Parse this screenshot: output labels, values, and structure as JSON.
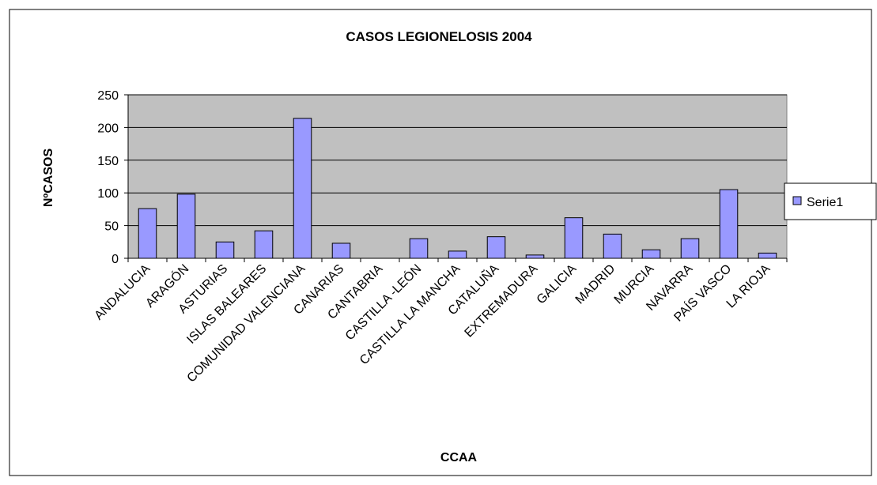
{
  "chart_data": {
    "type": "bar",
    "title": "CASOS LEGIONELOSIS 2004",
    "x_label": "CCAA",
    "y_label": "NºCASOS",
    "categories": [
      "ANDALUCIA",
      "ARAGÓN",
      "ASTURIAS",
      "ISLAS BALEARES",
      "COMUNIDAD VALENCIANA",
      "CANARIAS",
      "CANTABRIA",
      "CASTILLA -LEÓN",
      "CASTILLA LA MANCHA",
      "CATALUÑA",
      "EXTREMADURA",
      "GALICIA",
      "MADRID",
      "MURCIA",
      "NAVARRA",
      "PAÍS VASCO",
      "LA RIOJA"
    ],
    "series": [
      {
        "name": "Serie1",
        "color": "#9999ff",
        "values": [
          76,
          98,
          25,
          42,
          214,
          23,
          0,
          30,
          11,
          33,
          5,
          62,
          37,
          13,
          30,
          105,
          8
        ]
      }
    ],
    "ylim": [
      0,
      250
    ],
    "yticks": [
      0,
      50,
      100,
      150,
      200,
      250
    ],
    "grid": true,
    "legend": "right"
  }
}
